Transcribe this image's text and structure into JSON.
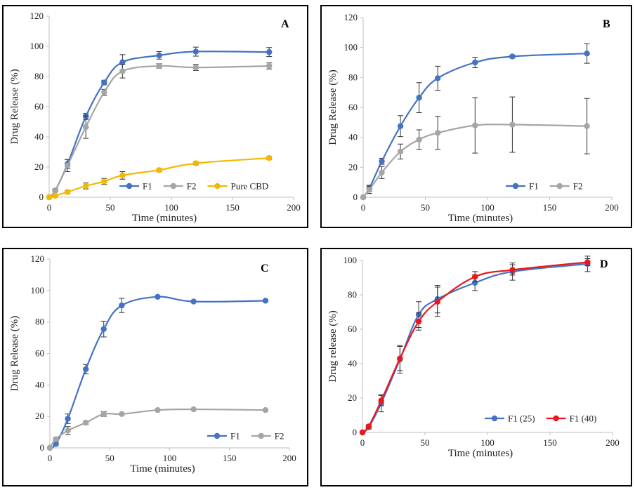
{
  "colors": {
    "blue": "#4472C4",
    "gray": "#A5A5A5",
    "gold": "#F5B800",
    "red": "#E8191C"
  },
  "chart_data": [
    {
      "panel": "A",
      "type": "line",
      "xlabel": "Time (minutes)",
      "ylabel": "Drug Release (%)",
      "xlim": [
        0,
        200
      ],
      "ylim": [
        0,
        120
      ],
      "xticks": [
        0,
        50,
        100,
        150,
        200
      ],
      "yticks": [
        0,
        20,
        40,
        60,
        80,
        100,
        120
      ],
      "legend_position": "bottom-right",
      "series": [
        {
          "name": "F1",
          "color": "blue",
          "x": [
            0,
            5,
            15,
            30,
            45,
            60,
            90,
            120,
            180
          ],
          "y": [
            0,
            4.5,
            22,
            53.5,
            76,
            89.5,
            94,
            96.5,
            96.2
          ],
          "err": [
            0,
            1,
            3,
            2,
            1.5,
            5,
            2.5,
            3,
            3
          ]
        },
        {
          "name": "F2",
          "color": "gray",
          "x": [
            0,
            5,
            15,
            30,
            45,
            60,
            90,
            120,
            180
          ],
          "y": [
            0,
            4.5,
            21,
            46.5,
            69.5,
            83.5,
            87,
            86,
            87
          ],
          "err": [
            0,
            1,
            4,
            7.5,
            2,
            4.5,
            1.5,
            2,
            2
          ]
        },
        {
          "name": "Pure CBD",
          "color": "gold",
          "x": [
            0,
            5,
            15,
            30,
            45,
            60,
            90,
            120,
            180
          ],
          "y": [
            0,
            1,
            3.5,
            7.5,
            10.5,
            14.5,
            18,
            22.5,
            26
          ],
          "err": [
            0,
            0.5,
            1,
            2,
            2,
            2.5,
            1,
            1,
            1
          ]
        }
      ]
    },
    {
      "panel": "B",
      "type": "line",
      "xlabel": "Time (minutes)",
      "ylabel": "Drug Release (%)",
      "xlim": [
        0,
        200
      ],
      "ylim": [
        0,
        120
      ],
      "xticks": [
        0,
        50,
        100,
        150,
        200
      ],
      "yticks": [
        0,
        20,
        40,
        60,
        80,
        100,
        120
      ],
      "legend_position": "bottom-right",
      "series": [
        {
          "name": "F1",
          "color": "blue",
          "x": [
            0,
            5,
            15,
            30,
            45,
            60,
            90,
            120,
            180
          ],
          "y": [
            0,
            6,
            24,
            47.5,
            66.5,
            79.5,
            90,
            94,
            96
          ],
          "err": [
            0,
            2,
            2,
            7,
            10,
            8,
            3.5,
            1,
            6.5
          ]
        },
        {
          "name": "F2",
          "color": "gray",
          "x": [
            0,
            5,
            15,
            30,
            45,
            60,
            90,
            120,
            180
          ],
          "y": [
            0,
            5,
            16.5,
            30.5,
            38.5,
            43,
            48,
            48.5,
            47.5
          ],
          "err": [
            0,
            2.5,
            4,
            5,
            6.5,
            11,
            18.5,
            18.5,
            18.5
          ]
        }
      ]
    },
    {
      "panel": "C",
      "type": "line",
      "xlabel": "Time (minutes)",
      "ylabel": "Drug Release (%)",
      "xlim": [
        0,
        200
      ],
      "ylim": [
        0,
        120
      ],
      "xticks": [
        0,
        50,
        100,
        150,
        200
      ],
      "yticks": [
        0,
        20,
        40,
        60,
        80,
        100,
        120
      ],
      "legend_position": "bottom-right",
      "series": [
        {
          "name": "F1",
          "color": "blue",
          "x": [
            0,
            5,
            15,
            30,
            45,
            60,
            90,
            120,
            180
          ],
          "y": [
            0,
            2.5,
            18.5,
            50,
            75.5,
            90.5,
            96,
            93,
            93.5
          ],
          "err": [
            0,
            1,
            3,
            3,
            5,
            4.5,
            0.5,
            0.5,
            0.5
          ]
        },
        {
          "name": "F2",
          "color": "gray",
          "x": [
            0,
            5,
            15,
            30,
            45,
            60,
            90,
            120,
            180
          ],
          "y": [
            0,
            5.5,
            11,
            16,
            21.5,
            21.5,
            24,
            24.5,
            24
          ],
          "err": [
            0,
            1,
            2.5,
            1,
            1.5,
            0.5,
            0.5,
            0.5,
            0.5
          ]
        }
      ]
    },
    {
      "panel": "D",
      "type": "line",
      "xlabel": "Time (minutes)",
      "ylabel": "Drug release (%)",
      "xlim": [
        0,
        200
      ],
      "ylim": [
        0,
        100
      ],
      "xticks": [
        0,
        50,
        100,
        150,
        200
      ],
      "yticks": [
        0,
        20,
        40,
        60,
        80,
        100
      ],
      "legend_position": "bottom-right",
      "series": [
        {
          "name": "F1 (25)",
          "color": "blue",
          "x": [
            0,
            5,
            15,
            30,
            45,
            60,
            90,
            120,
            180
          ],
          "y": [
            0,
            3,
            17,
            42.5,
            68.5,
            77.5,
            87,
            93.5,
            98
          ],
          "err": [
            0,
            1,
            5,
            8,
            7.5,
            8,
            4.5,
            5,
            4.5
          ]
        },
        {
          "name": "F1 (40)",
          "color": "red",
          "x": [
            0,
            5,
            15,
            30,
            45,
            60,
            90,
            120,
            180
          ],
          "y": [
            0,
            3.5,
            18.5,
            43,
            64.5,
            76,
            90.5,
            94.5,
            99
          ],
          "err": [
            0,
            1,
            3,
            7,
            5,
            8.5,
            3,
            3,
            2
          ]
        }
      ]
    }
  ]
}
